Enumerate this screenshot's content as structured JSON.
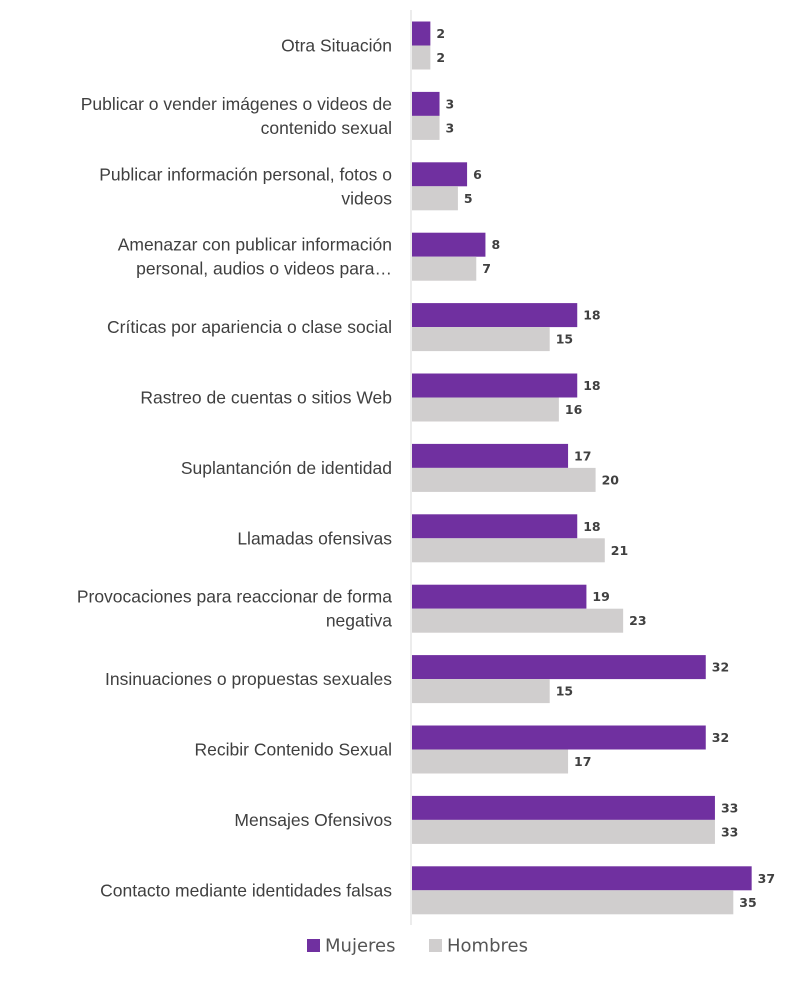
{
  "chart_data": {
    "type": "bar",
    "orientation": "horizontal",
    "categories": [
      "Otra Situación",
      "Publicar o vender imágenes o videos de contenido sexual",
      "Publicar información personal, fotos o videos",
      "Amenazar con publicar información personal, audios o videos para…",
      "Críticas por apariencia o clase social",
      "Rastreo de cuentas o sitios Web",
      "Suplantanción de identidad",
      "Llamadas ofensivas",
      "Provocaciones para reaccionar de forma negativa",
      "Insinuaciones o propuestas sexuales",
      "Recibir Contenido Sexual",
      "Mensajes Ofensivos",
      "Contacto mediante identidades falsas"
    ],
    "category_lines": [
      [
        "Otra Situación"
      ],
      [
        "Publicar o vender imágenes o videos de",
        "contenido sexual"
      ],
      [
        "Publicar información personal, fotos o",
        "videos"
      ],
      [
        "Amenazar con publicar información",
        "personal, audios o videos para…"
      ],
      [
        "Críticas por apariencia o clase social"
      ],
      [
        "Rastreo de cuentas o sitios Web"
      ],
      [
        "Suplantanción de identidad"
      ],
      [
        "Llamadas ofensivas"
      ],
      [
        "Provocaciones para reaccionar de forma",
        "negativa"
      ],
      [
        "Insinuaciones o propuestas sexuales"
      ],
      [
        "Recibir Contenido Sexual"
      ],
      [
        "Mensajes Ofensivos"
      ],
      [
        "Contacto mediante identidades falsas"
      ]
    ],
    "series": [
      {
        "name": "Mujeres",
        "color": "#7030a0",
        "values": [
          2,
          3,
          6,
          8,
          18,
          18,
          17,
          18,
          19,
          32,
          32,
          33,
          37
        ]
      },
      {
        "name": "Hombres",
        "color": "#d0cece",
        "values": [
          2,
          3,
          5,
          7,
          15,
          16,
          20,
          21,
          23,
          15,
          17,
          33,
          35
        ]
      }
    ],
    "xlim": [
      0,
      37
    ],
    "grid": false,
    "legend_position": "bottom"
  }
}
